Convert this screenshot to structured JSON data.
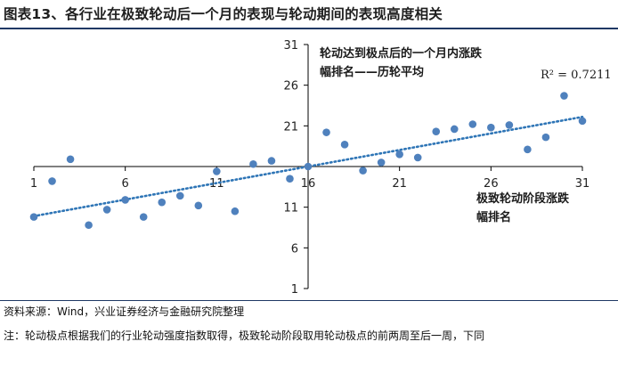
{
  "figure": {
    "title": "图表13、各行业在极致轮动后一个月的表现与轮动期间的表现高度相关",
    "source": "资料来源：Wind，兴业证券经济与金融研究院整理",
    "note": "注：轮动极点根据我们的行业轮动强度指数取得，极致轮动阶段取用轮动极点的前两周至后一周，下同"
  },
  "chart_data": {
    "type": "scatter",
    "title": "",
    "xlabel": "极致轮动阶段涨跌幅排名",
    "ylabel": "轮动达到极点后的一个月内涨跌幅排名——历轮平均",
    "xlabel_lines": [
      "极致轮动阶段涨跌",
      "幅排名"
    ],
    "ylabel_lines": [
      "轮动达到极点后的一个月内涨跌",
      "幅排名——历轮平均"
    ],
    "xlim": [
      1,
      31
    ],
    "ylim": [
      1,
      31
    ],
    "x_ticks": [
      1,
      6,
      11,
      16,
      21,
      26,
      31
    ],
    "y_ticks": [
      1,
      6,
      11,
      16,
      21,
      26,
      31
    ],
    "axis_cross": [
      16,
      16
    ],
    "series": [
      {
        "name": "行业",
        "color": "#4f81bd",
        "points": [
          {
            "x": 1,
            "y": 9.8
          },
          {
            "x": 2,
            "y": 14.2
          },
          {
            "x": 3,
            "y": 16.9
          },
          {
            "x": 4,
            "y": 8.8
          },
          {
            "x": 5,
            "y": 10.7
          },
          {
            "x": 6,
            "y": 11.9
          },
          {
            "x": 7,
            "y": 9.8
          },
          {
            "x": 8,
            "y": 11.6
          },
          {
            "x": 9,
            "y": 12.4
          },
          {
            "x": 10,
            "y": 11.2
          },
          {
            "x": 11,
            "y": 15.4
          },
          {
            "x": 12,
            "y": 10.5
          },
          {
            "x": 13,
            "y": 16.3
          },
          {
            "x": 14,
            "y": 16.7
          },
          {
            "x": 15,
            "y": 14.5
          },
          {
            "x": 16,
            "y": 16.0
          },
          {
            "x": 17,
            "y": 20.2
          },
          {
            "x": 18,
            "y": 18.7
          },
          {
            "x": 19,
            "y": 15.5
          },
          {
            "x": 20,
            "y": 16.5
          },
          {
            "x": 21,
            "y": 17.5
          },
          {
            "x": 22,
            "y": 17.1
          },
          {
            "x": 23,
            "y": 20.3
          },
          {
            "x": 24,
            "y": 20.6
          },
          {
            "x": 25,
            "y": 21.2
          },
          {
            "x": 26,
            "y": 20.8
          },
          {
            "x": 27,
            "y": 21.1
          },
          {
            "x": 28,
            "y": 18.1
          },
          {
            "x": 29,
            "y": 19.6
          },
          {
            "x": 30,
            "y": 24.7
          },
          {
            "x": 31,
            "y": 21.6
          }
        ]
      }
    ],
    "trendline": {
      "type": "linear",
      "from": [
        1,
        9.9
      ],
      "to": [
        31,
        22.1
      ],
      "color": "#2e75b6",
      "style": "dotted"
    },
    "annotations": {
      "r_squared": "R² = 0.7211"
    }
  }
}
